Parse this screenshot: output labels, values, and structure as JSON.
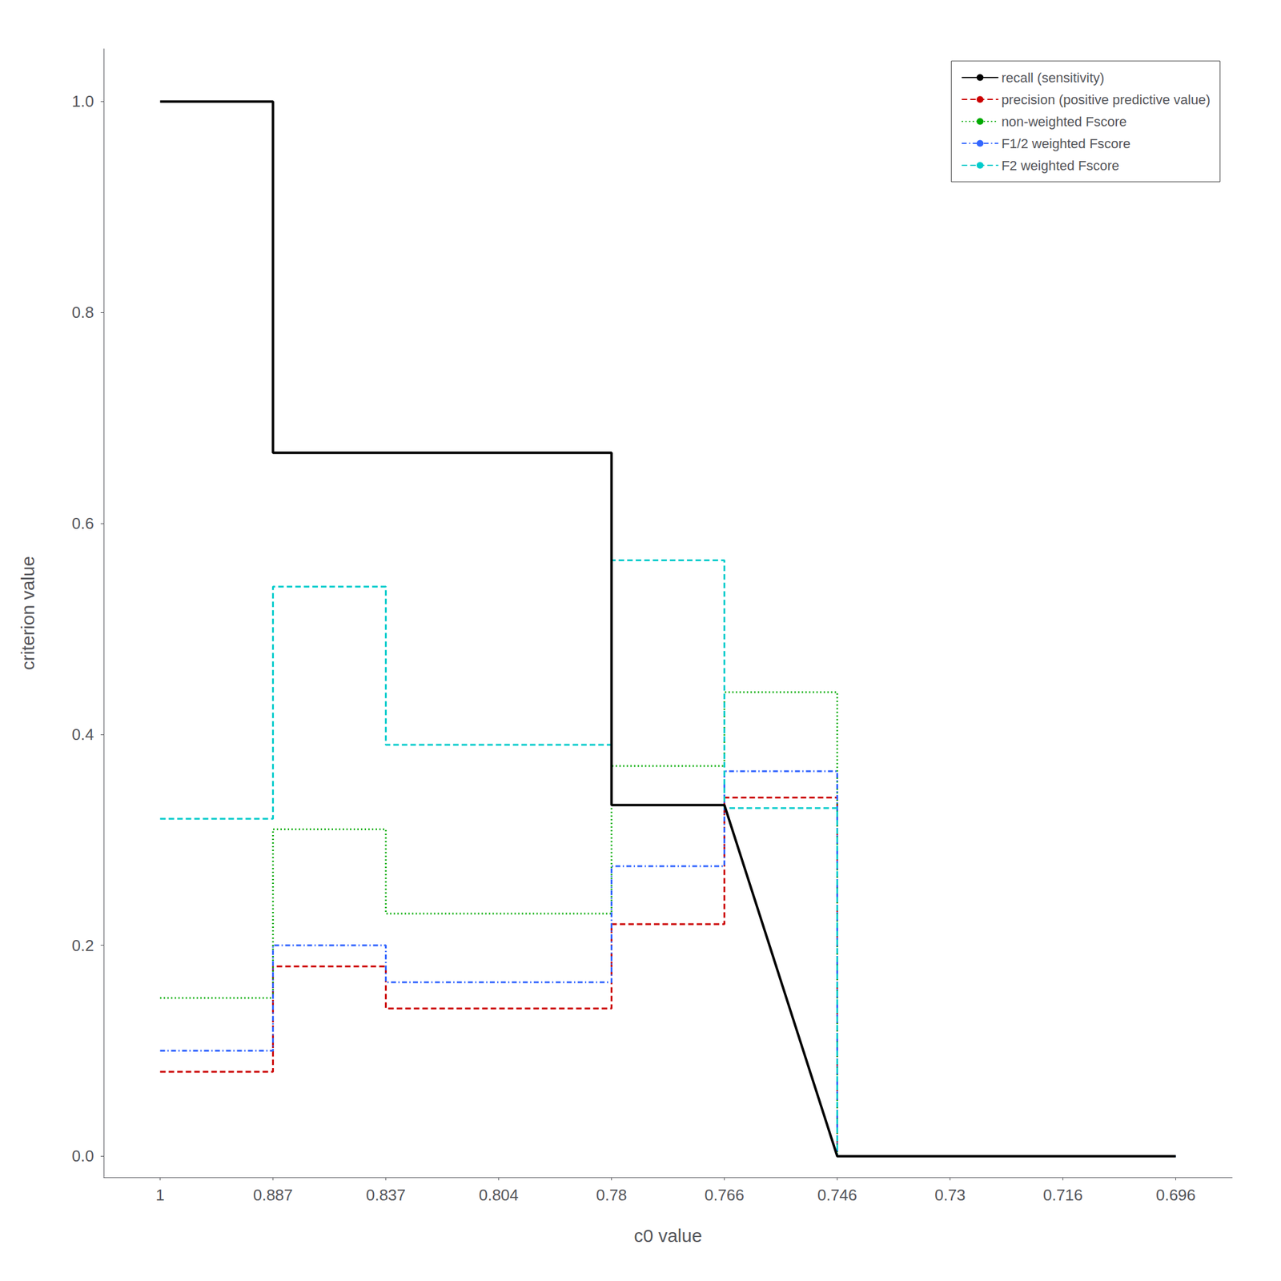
{
  "chart_data": {
    "type": "line",
    "xlabel": "c0 value",
    "ylabel": "criterion value",
    "categories": [
      "1",
      "0.887",
      "0.837",
      "0.804",
      "0.78",
      "0.766",
      "0.746",
      "0.73",
      "0.716",
      "0.696"
    ],
    "ylim": [
      -0.02,
      1.05
    ],
    "yticks": [
      {
        "value": 0,
        "label": "0.0"
      },
      0.2,
      0.4,
      0.6,
      0.8,
      {
        "value": 1,
        "label": "1.0"
      }
    ],
    "grid": false,
    "legend": "upper right",
    "series": [
      {
        "name": "recall (sensitivity)",
        "color": "#000000",
        "line_style": "solid",
        "x": [
          "1",
          "1",
          "0.887",
          "0.887",
          "0.837",
          "0.804",
          "0.804",
          "0.78",
          "0.78",
          "0.766",
          "0.746",
          "0.73",
          "0.716",
          "0.696"
        ],
        "values": [
          1.0,
          1.0,
          1.0,
          0.667,
          0.667,
          0.667,
          0.667,
          0.667,
          0.333,
          0.333,
          0.0,
          0.0,
          0.0,
          0.0
        ]
      },
      {
        "name": "precision (positive predictive value)",
        "color": "#cc0000",
        "line_style": "dashed",
        "x": [
          "1",
          "1",
          "0.887",
          "0.887",
          "0.837",
          "0.837",
          "0.804",
          "0.804",
          "0.78",
          "0.78",
          "0.766",
          "0.766",
          "0.746",
          "0.746",
          "0.73",
          "0.716",
          "0.696"
        ],
        "values": [
          0.08,
          0.08,
          0.08,
          0.18,
          0.18,
          0.14,
          0.14,
          0.14,
          0.14,
          0.22,
          0.22,
          0.34,
          0.34,
          0.0,
          0.0,
          0.0,
          0.0
        ]
      },
      {
        "name": "non-weighted Fscore",
        "color": "#00aa00",
        "line_style": "dotted",
        "x": [
          "1",
          "1",
          "0.887",
          "0.887",
          "0.837",
          "0.837",
          "0.804",
          "0.804",
          "0.78",
          "0.78",
          "0.766",
          "0.766",
          "0.746",
          "0.746",
          "0.73",
          "0.716",
          "0.696"
        ],
        "values": [
          0.15,
          0.15,
          0.15,
          0.31,
          0.31,
          0.23,
          0.23,
          0.23,
          0.23,
          0.37,
          0.37,
          0.44,
          0.44,
          0.0,
          0.0,
          0.0,
          0.0
        ]
      },
      {
        "name": "F1/2 weighted Fscore",
        "color": "#3366ff",
        "line_style": "dashdot",
        "x": [
          "1",
          "1",
          "0.887",
          "0.887",
          "0.837",
          "0.837",
          "0.804",
          "0.804",
          "0.78",
          "0.78",
          "0.766",
          "0.766",
          "0.746",
          "0.746",
          "0.73",
          "0.716",
          "0.696"
        ],
        "values": [
          0.1,
          0.1,
          0.1,
          0.2,
          0.2,
          0.165,
          0.165,
          0.165,
          0.165,
          0.275,
          0.275,
          0.365,
          0.365,
          0.0,
          0.0,
          0.0,
          0.0
        ]
      },
      {
        "name": "F2 weighted Fscore",
        "color": "#00cccc",
        "line_style": "dashed",
        "x": [
          "1",
          "1",
          "0.887",
          "0.887",
          "0.837",
          "0.837",
          "0.804",
          "0.804",
          "0.78",
          "0.78",
          "0.766",
          "0.766",
          "0.746",
          "0.746",
          "0.73",
          "0.716",
          "0.696"
        ],
        "values": [
          0.32,
          0.32,
          0.32,
          0.54,
          0.54,
          0.39,
          0.39,
          0.39,
          0.39,
          0.565,
          0.565,
          0.33,
          0.33,
          0.0,
          0.0,
          0.0,
          0.0
        ]
      }
    ]
  }
}
